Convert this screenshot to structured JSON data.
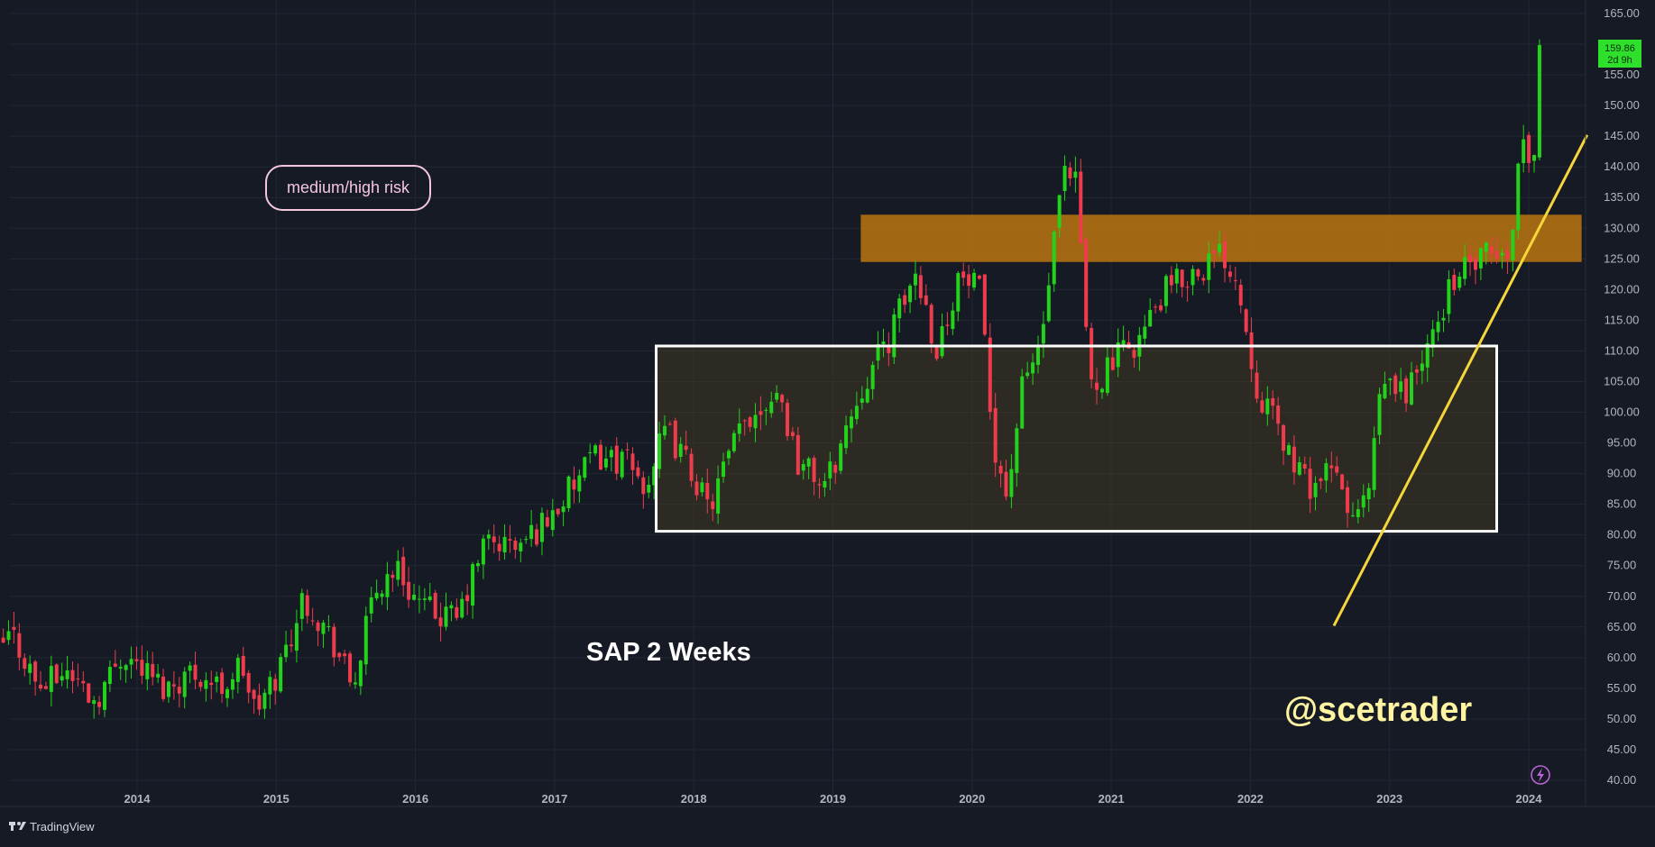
{
  "chart_data": {
    "type": "candlestick",
    "title": "SAP 2 Weeks",
    "watermark": "@scetrader",
    "risk_label": "medium/high risk",
    "brand": "TradingView",
    "last_price_label": "159.86",
    "countdown_label": "2d 9h",
    "ylim": [
      38,
      166
    ],
    "xlim": [
      2013.0,
      2024.7
    ],
    "y_ticks": [
      "165.00",
      "160.00",
      "155.00",
      "150.00",
      "145.00",
      "140.00",
      "135.00",
      "130.00",
      "125.00",
      "120.00",
      "115.00",
      "110.00",
      "105.00",
      "100.00",
      "95.00",
      "90.00",
      "85.00",
      "80.00",
      "75.00",
      "70.00",
      "65.00",
      "60.00",
      "55.00",
      "50.00",
      "45.00",
      "40.00"
    ],
    "x_ticks": [
      "2014",
      "2015",
      "2016",
      "2017",
      "2018",
      "2019",
      "2020",
      "2021",
      "2022",
      "2023",
      "2024"
    ],
    "price_path": [
      [
        2013.0,
        61
      ],
      [
        2013.1,
        64
      ],
      [
        2013.3,
        55
      ],
      [
        2013.5,
        58
      ],
      [
        2013.7,
        53
      ],
      [
        2013.9,
        61
      ],
      [
        2014.05,
        58
      ],
      [
        2014.2,
        55
      ],
      [
        2014.4,
        58
      ],
      [
        2014.6,
        55
      ],
      [
        2014.75,
        59
      ],
      [
        2014.85,
        51
      ],
      [
        2015.0,
        57
      ],
      [
        2015.2,
        70
      ],
      [
        2015.4,
        63
      ],
      [
        2015.55,
        55
      ],
      [
        2015.7,
        70
      ],
      [
        2015.85,
        75
      ],
      [
        2016.05,
        68
      ],
      [
        2016.3,
        66
      ],
      [
        2016.5,
        79
      ],
      [
        2016.75,
        78
      ],
      [
        2017.0,
        84
      ],
      [
        2017.3,
        93
      ],
      [
        2017.5,
        92
      ],
      [
        2017.65,
        88
      ],
      [
        2017.8,
        97
      ],
      [
        2018.0,
        90
      ],
      [
        2018.1,
        84
      ],
      [
        2018.35,
        98
      ],
      [
        2018.6,
        104
      ],
      [
        2018.75,
        92
      ],
      [
        2018.95,
        88
      ],
      [
        2019.2,
        104
      ],
      [
        2019.4,
        112
      ],
      [
        2019.6,
        123
      ],
      [
        2019.75,
        110
      ],
      [
        2019.9,
        122
      ],
      [
        2020.05,
        120
      ],
      [
        2020.15,
        96
      ],
      [
        2020.25,
        86
      ],
      [
        2020.35,
        103
      ],
      [
        2020.5,
        112
      ],
      [
        2020.65,
        138
      ],
      [
        2020.75,
        137
      ],
      [
        2020.85,
        104
      ],
      [
        2021.0,
        108
      ],
      [
        2021.2,
        112
      ],
      [
        2021.4,
        120
      ],
      [
        2021.6,
        123
      ],
      [
        2021.8,
        126
      ],
      [
        2021.9,
        122
      ],
      [
        2022.05,
        104
      ],
      [
        2022.2,
        97
      ],
      [
        2022.4,
        88
      ],
      [
        2022.6,
        90
      ],
      [
        2022.75,
        82
      ],
      [
        2022.85,
        87
      ],
      [
        2022.95,
        105
      ],
      [
        2023.1,
        103
      ],
      [
        2023.3,
        111
      ],
      [
        2023.45,
        122
      ],
      [
        2023.6,
        124
      ],
      [
        2023.75,
        126
      ],
      [
        2023.85,
        124
      ],
      [
        2023.95,
        146
      ],
      [
        2024.0,
        140
      ],
      [
        2024.05,
        145
      ],
      [
        2024.08,
        160
      ]
    ],
    "annotations": {
      "resistance_zone": {
        "y_low": 124.5,
        "y_high": 132.2,
        "x_start": 2019.2,
        "x_end": 2024.38,
        "color": "#c67a0e"
      },
      "range_box": {
        "y_low": 80.6,
        "y_high": 110.8,
        "x_start": 2017.73,
        "x_end": 2023.77,
        "color": "#ffffff"
      },
      "trendline": {
        "from": [
          2022.6,
          65.2
        ],
        "to": [
          2024.42,
          145.2
        ],
        "color": "#f5d73a"
      }
    },
    "colors": {
      "background": "#161a25",
      "up": "#22d21b",
      "down": "#ef3c4d",
      "grid": "#232733",
      "axis_text": "#b2b5be",
      "risk_border": "#f4c6dc",
      "watermark": "#fff4a1",
      "price_tag": "#2ee02b"
    },
    "icons": [
      "lightning-icon",
      "tradingview-logo-icon"
    ]
  }
}
